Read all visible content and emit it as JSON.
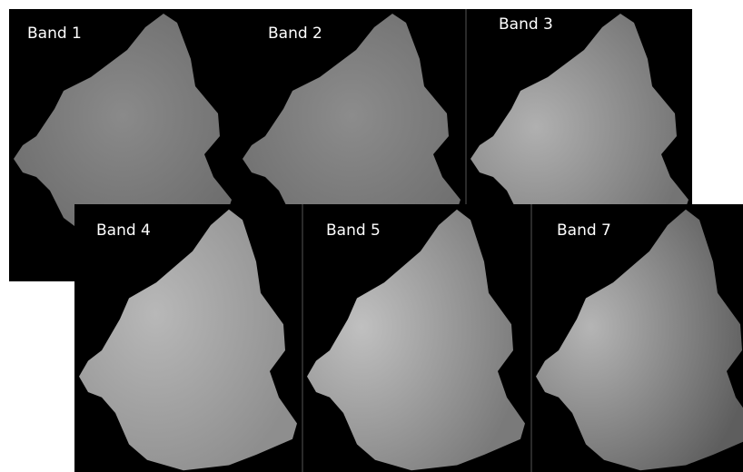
{
  "panels": [
    {
      "label": "Band 1"
    },
    {
      "label": "Band 2"
    },
    {
      "label": "Band 3"
    },
    {
      "label": "Band 4"
    },
    {
      "label": "Band 5"
    },
    {
      "label": "Band 7"
    }
  ]
}
